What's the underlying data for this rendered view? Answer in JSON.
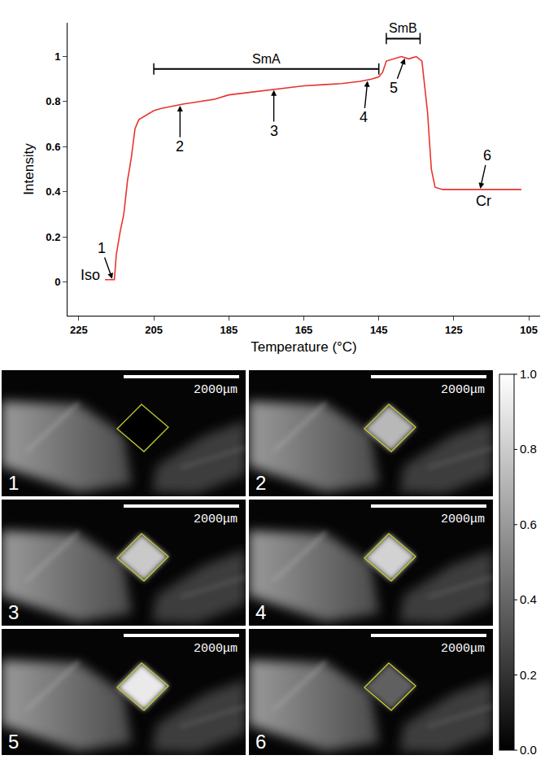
{
  "chart_data": {
    "type": "line",
    "x_label": "Temperature (°C)",
    "y_label": "Intensity",
    "color": "#e8342c",
    "x": [
      218,
      215.5,
      215,
      214,
      213,
      212,
      211,
      210,
      209,
      207,
      205,
      203,
      200,
      197,
      193,
      189,
      185,
      180,
      175,
      170,
      165,
      160,
      155,
      150,
      147,
      145,
      144,
      143,
      141,
      139,
      137,
      135,
      133.5,
      132,
      131,
      130,
      128,
      120,
      113,
      107
    ],
    "values": [
      0.01,
      0.01,
      0.12,
      0.22,
      0.3,
      0.45,
      0.55,
      0.68,
      0.72,
      0.74,
      0.76,
      0.77,
      0.78,
      0.79,
      0.8,
      0.81,
      0.83,
      0.84,
      0.85,
      0.86,
      0.87,
      0.875,
      0.88,
      0.89,
      0.9,
      0.91,
      0.93,
      0.98,
      0.99,
      1.0,
      0.99,
      1.0,
      0.98,
      0.75,
      0.5,
      0.42,
      0.41,
      0.41,
      0.41,
      0.41
    ],
    "xlim": [
      228,
      102
    ],
    "xticks": [
      225,
      205,
      185,
      165,
      145,
      125,
      105
    ],
    "ylim": [
      -0.15,
      1.15
    ],
    "yticks": [
      0,
      0.2,
      0.4,
      0.6,
      0.8,
      1
    ],
    "grid": false,
    "point_labels": [
      {
        "text": "1",
        "x": 216,
        "y": 0.01,
        "tx": 219,
        "ty": 0.15
      },
      {
        "text": "2",
        "x": 198,
        "y": 0.785,
        "tx": 198,
        "ty": 0.6
      },
      {
        "text": "3",
        "x": 173,
        "y": 0.855,
        "tx": 173,
        "ty": 0.67
      },
      {
        "text": "4",
        "x": 148,
        "y": 0.895,
        "tx": 149,
        "ty": 0.73
      },
      {
        "text": "5",
        "x": 138,
        "y": 0.995,
        "tx": 141,
        "ty": 0.86
      },
      {
        "text": "6",
        "x": 118,
        "y": 0.41,
        "tx": 116,
        "ty": 0.56
      }
    ],
    "phase_labels": [
      {
        "text": "Iso",
        "x": 222,
        "y": 0.03
      },
      {
        "text": "Cr",
        "x": 117,
        "y": 0.36
      }
    ],
    "phase_ranges": [
      {
        "text": "SmA",
        "x0": 205,
        "x1": 145,
        "y": 0.945
      },
      {
        "text": "SmB",
        "x0": 143,
        "x1": 134,
        "y": 1.08
      }
    ]
  },
  "micrographs": {
    "panels": [
      "1",
      "2",
      "3",
      "4",
      "5",
      "6"
    ],
    "scale_bar": "2000μm",
    "colorbar": {
      "range": [
        0,
        1
      ],
      "ticks": [
        {
          "value": 0,
          "label": "0.0"
        },
        0.2,
        0.4,
        0.6,
        0.8,
        {
          "value": 1,
          "label": "1.0"
        }
      ]
    }
  }
}
